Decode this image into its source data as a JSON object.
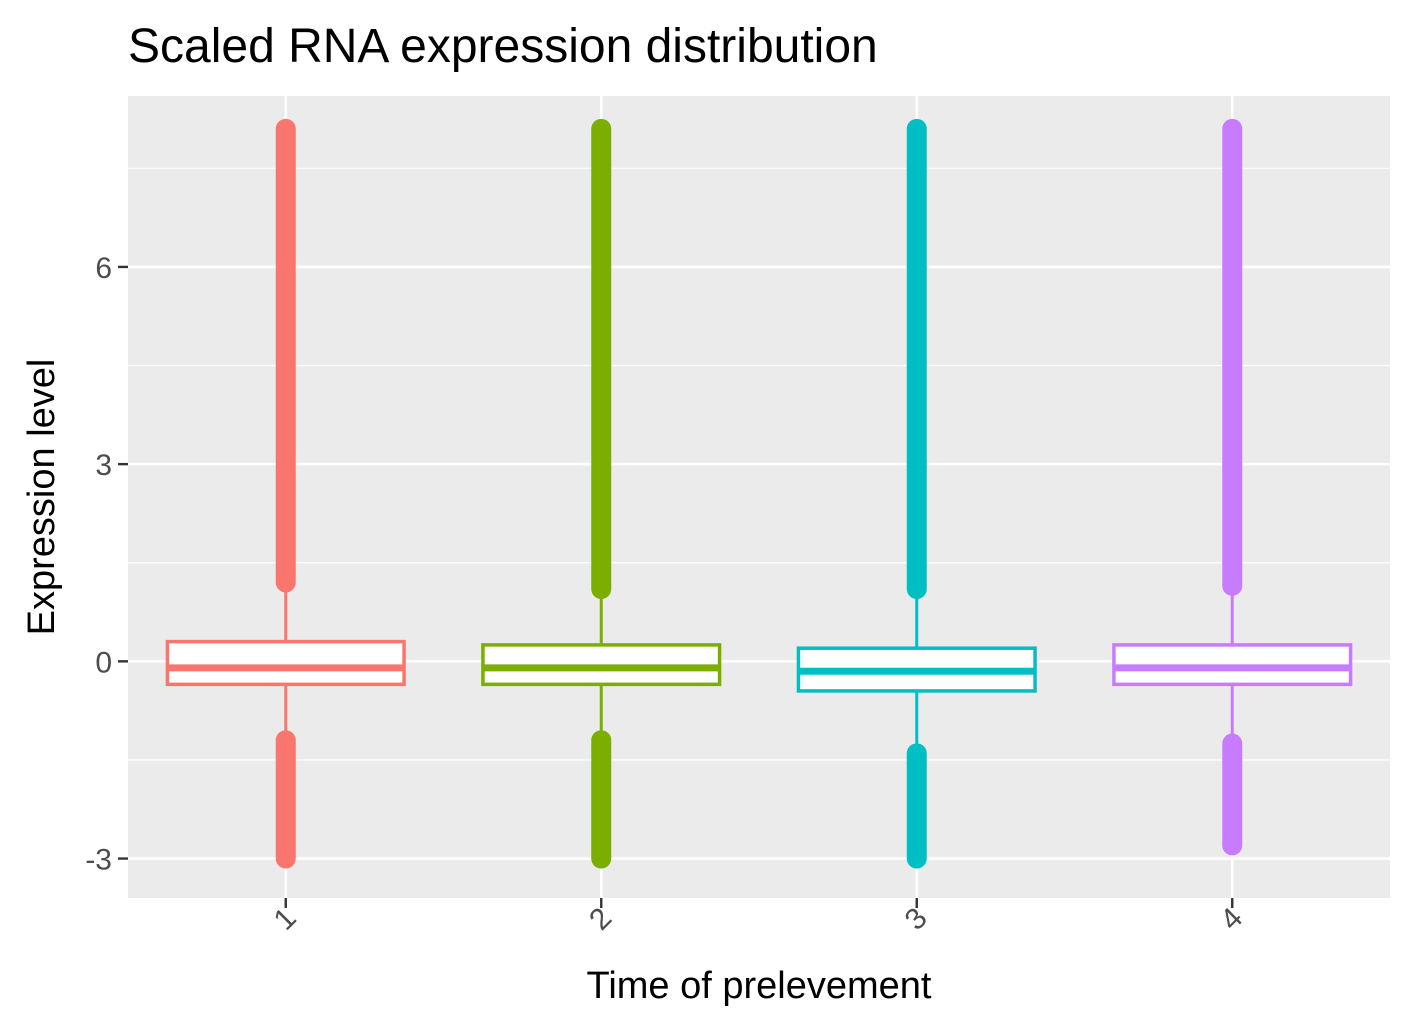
{
  "chart_data": {
    "type": "boxplot",
    "title": "Scaled RNA expression distribution",
    "xlabel": "Time of prelevement",
    "ylabel": "Expression level",
    "ylim": [
      -3.6,
      8.6
    ],
    "yticks": [
      -3,
      0,
      3,
      6
    ],
    "y_tick_labels": [
      "-3",
      "0",
      "3",
      "6"
    ],
    "categories": [
      "1",
      "2",
      "3",
      "4"
    ],
    "x_tick_rotation": "-45deg",
    "grid": true,
    "legend": "none",
    "panel_background": "#EBEBEB",
    "colors": [
      "#F8766D",
      "#7CAE00",
      "#00BFC4",
      "#C77CFF"
    ],
    "series": [
      {
        "category": "1",
        "q1": -0.35,
        "median": -0.1,
        "q3": 0.3,
        "whisker_low": -1.3,
        "whisker_high": 1.2,
        "outliers_high": [
          1.2,
          8.1
        ],
        "outliers_low": [
          -3.0,
          -1.2
        ]
      },
      {
        "category": "2",
        "q1": -0.35,
        "median": -0.1,
        "q3": 0.25,
        "whisker_low": -1.2,
        "whisker_high": 1.1,
        "outliers_high": [
          1.1,
          8.1
        ],
        "outliers_low": [
          -3.0,
          -1.2
        ]
      },
      {
        "category": "3",
        "q1": -0.45,
        "median": -0.15,
        "q3": 0.2,
        "whisker_low": -1.4,
        "whisker_high": 1.1,
        "outliers_high": [
          1.1,
          8.1
        ],
        "outliers_low": [
          -3.0,
          -1.4
        ]
      },
      {
        "category": "4",
        "q1": -0.35,
        "median": -0.1,
        "q3": 0.25,
        "whisker_low": -1.25,
        "whisker_high": 1.15,
        "outliers_high": [
          1.15,
          8.1
        ],
        "outliers_low": [
          -2.8,
          -1.25
        ]
      }
    ]
  }
}
